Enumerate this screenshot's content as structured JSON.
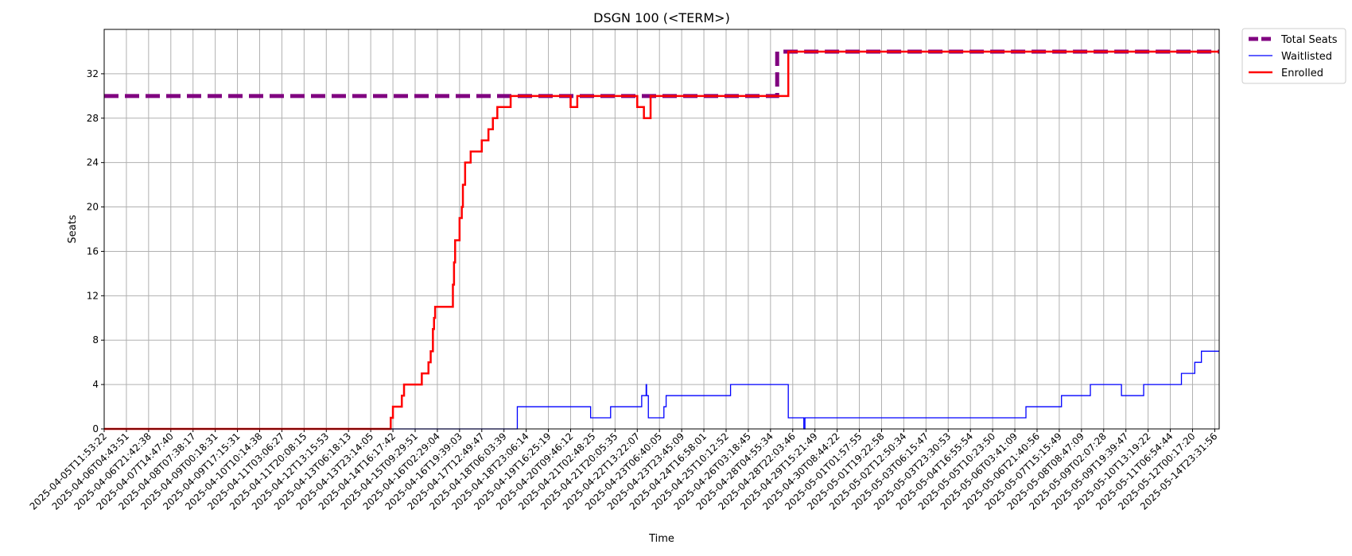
{
  "chart_data": {
    "type": "line",
    "title": "DSGN 100 (<TERM>)",
    "xlabel": "Time",
    "ylabel": "Seats",
    "ylim": [
      0,
      36
    ],
    "yticks": [
      0,
      4,
      8,
      12,
      16,
      20,
      24,
      28,
      32
    ],
    "grid": true,
    "legend": "outside-top-right",
    "x_tick_labels": [
      "2025-04-05T11:53:22",
      "2025-04-06T04:43:51",
      "2025-04-06T21:42:38",
      "2025-04-07T14:47:40",
      "2025-04-08T07:38:17",
      "2025-04-09T00:18:31",
      "2025-04-09T17:15:31",
      "2025-04-10T10:14:38",
      "2025-04-11T03:06:27",
      "2025-04-11T20:08:15",
      "2025-04-12T13:15:53",
      "2025-04-13T06:18:13",
      "2025-04-13T23:14:05",
      "2025-04-14T16:17:42",
      "2025-04-15T09:29:51",
      "2025-04-16T02:29:04",
      "2025-04-16T19:39:03",
      "2025-04-17T12:49:47",
      "2025-04-18T06:03:39",
      "2025-04-18T23:06:14",
      "2025-04-19T16:25:19",
      "2025-04-20T09:46:12",
      "2025-04-21T02:48:25",
      "2025-04-21T20:05:35",
      "2025-04-22T13:22:07",
      "2025-04-23T06:40:05",
      "2025-04-23T23:45:09",
      "2025-04-24T16:58:01",
      "2025-04-25T10:12:52",
      "2025-04-26T03:18:45",
      "2025-04-28T04:55:34",
      "2025-04-28T22:03:46",
      "2025-04-29T15:21:49",
      "2025-04-30T08:44:22",
      "2025-05-01T01:57:55",
      "2025-05-01T19:22:58",
      "2025-05-02T12:50:34",
      "2025-05-03T06:15:47",
      "2025-05-03T23:30:53",
      "2025-05-04T16:55:54",
      "2025-05-05T10:23:50",
      "2025-05-06T03:41:09",
      "2025-05-06T21:40:56",
      "2025-05-07T15:15:49",
      "2025-05-08T08:47:09",
      "2025-05-09T02:07:28",
      "2025-05-09T19:39:47",
      "2025-05-10T13:19:22",
      "2025-05-11T06:54:44",
      "2025-05-12T00:17:20",
      "2025-05-14T23:31:56"
    ],
    "x_range": [
      0,
      50.2
    ],
    "series": [
      {
        "name": "Total Seats",
        "color": "#800080",
        "style": "dashed",
        "points": [
          [
            0,
            30
          ],
          [
            30.3,
            30
          ],
          [
            30.3,
            34
          ],
          [
            50.2,
            34
          ]
        ]
      },
      {
        "name": "Waitlisted",
        "color": "#0000ff",
        "style": "solid",
        "points": [
          [
            0,
            0
          ],
          [
            18.6,
            0
          ],
          [
            18.6,
            2
          ],
          [
            21.9,
            2
          ],
          [
            21.9,
            1
          ],
          [
            22.8,
            1
          ],
          [
            22.8,
            2
          ],
          [
            24.2,
            2
          ],
          [
            24.2,
            3
          ],
          [
            24.4,
            3
          ],
          [
            24.4,
            4
          ],
          [
            24.42,
            4
          ],
          [
            24.42,
            3
          ],
          [
            24.5,
            3
          ],
          [
            24.5,
            1
          ],
          [
            25.2,
            1
          ],
          [
            25.2,
            2
          ],
          [
            25.3,
            2
          ],
          [
            25.3,
            3
          ],
          [
            28.2,
            3
          ],
          [
            28.2,
            4
          ],
          [
            30.8,
            4
          ],
          [
            30.8,
            1
          ],
          [
            31.5,
            1
          ],
          [
            31.5,
            0
          ],
          [
            31.55,
            0
          ],
          [
            31.55,
            1
          ],
          [
            41.5,
            1
          ],
          [
            41.5,
            2
          ],
          [
            43.1,
            2
          ],
          [
            43.1,
            3
          ],
          [
            44.4,
            3
          ],
          [
            44.4,
            4
          ],
          [
            45.8,
            4
          ],
          [
            45.8,
            3
          ],
          [
            46.8,
            3
          ],
          [
            46.8,
            4
          ],
          [
            48.5,
            4
          ],
          [
            48.5,
            5
          ],
          [
            49.1,
            5
          ],
          [
            49.1,
            6
          ],
          [
            49.4,
            6
          ],
          [
            49.4,
            7
          ],
          [
            50.2,
            7
          ]
        ]
      },
      {
        "name": "Enrolled",
        "color": "#ff0000",
        "style": "solid",
        "points": [
          [
            0,
            0
          ],
          [
            12.9,
            0
          ],
          [
            12.9,
            1
          ],
          [
            13.0,
            1
          ],
          [
            13.0,
            2
          ],
          [
            13.4,
            2
          ],
          [
            13.4,
            3
          ],
          [
            13.5,
            3
          ],
          [
            13.5,
            4
          ],
          [
            14.0,
            4
          ],
          [
            14.3,
            4
          ],
          [
            14.3,
            5
          ],
          [
            14.6,
            5
          ],
          [
            14.6,
            6
          ],
          [
            14.7,
            6
          ],
          [
            14.7,
            7
          ],
          [
            14.8,
            7
          ],
          [
            14.8,
            9
          ],
          [
            14.85,
            9
          ],
          [
            14.85,
            10
          ],
          [
            14.9,
            10
          ],
          [
            14.9,
            11
          ],
          [
            15.4,
            11
          ],
          [
            15.7,
            11
          ],
          [
            15.7,
            13
          ],
          [
            15.75,
            13
          ],
          [
            15.75,
            15
          ],
          [
            15.8,
            15
          ],
          [
            15.8,
            17
          ],
          [
            16.0,
            17
          ],
          [
            16.0,
            19
          ],
          [
            16.1,
            19
          ],
          [
            16.1,
            20
          ],
          [
            16.15,
            20
          ],
          [
            16.15,
            22
          ],
          [
            16.25,
            22
          ],
          [
            16.25,
            24
          ],
          [
            16.5,
            24
          ],
          [
            16.5,
            25
          ],
          [
            17.0,
            25
          ],
          [
            17.0,
            26
          ],
          [
            17.3,
            26
          ],
          [
            17.3,
            27
          ],
          [
            17.5,
            27
          ],
          [
            17.5,
            28
          ],
          [
            17.7,
            28
          ],
          [
            17.7,
            29
          ],
          [
            18.3,
            29
          ],
          [
            18.3,
            30
          ],
          [
            21.0,
            30
          ],
          [
            21.0,
            29
          ],
          [
            21.3,
            29
          ],
          [
            21.3,
            30
          ],
          [
            24.0,
            30
          ],
          [
            24.0,
            29
          ],
          [
            24.3,
            29
          ],
          [
            24.3,
            28
          ],
          [
            24.6,
            28
          ],
          [
            24.6,
            30
          ],
          [
            30.8,
            30
          ],
          [
            30.8,
            34
          ],
          [
            50.2,
            34
          ]
        ]
      }
    ]
  }
}
